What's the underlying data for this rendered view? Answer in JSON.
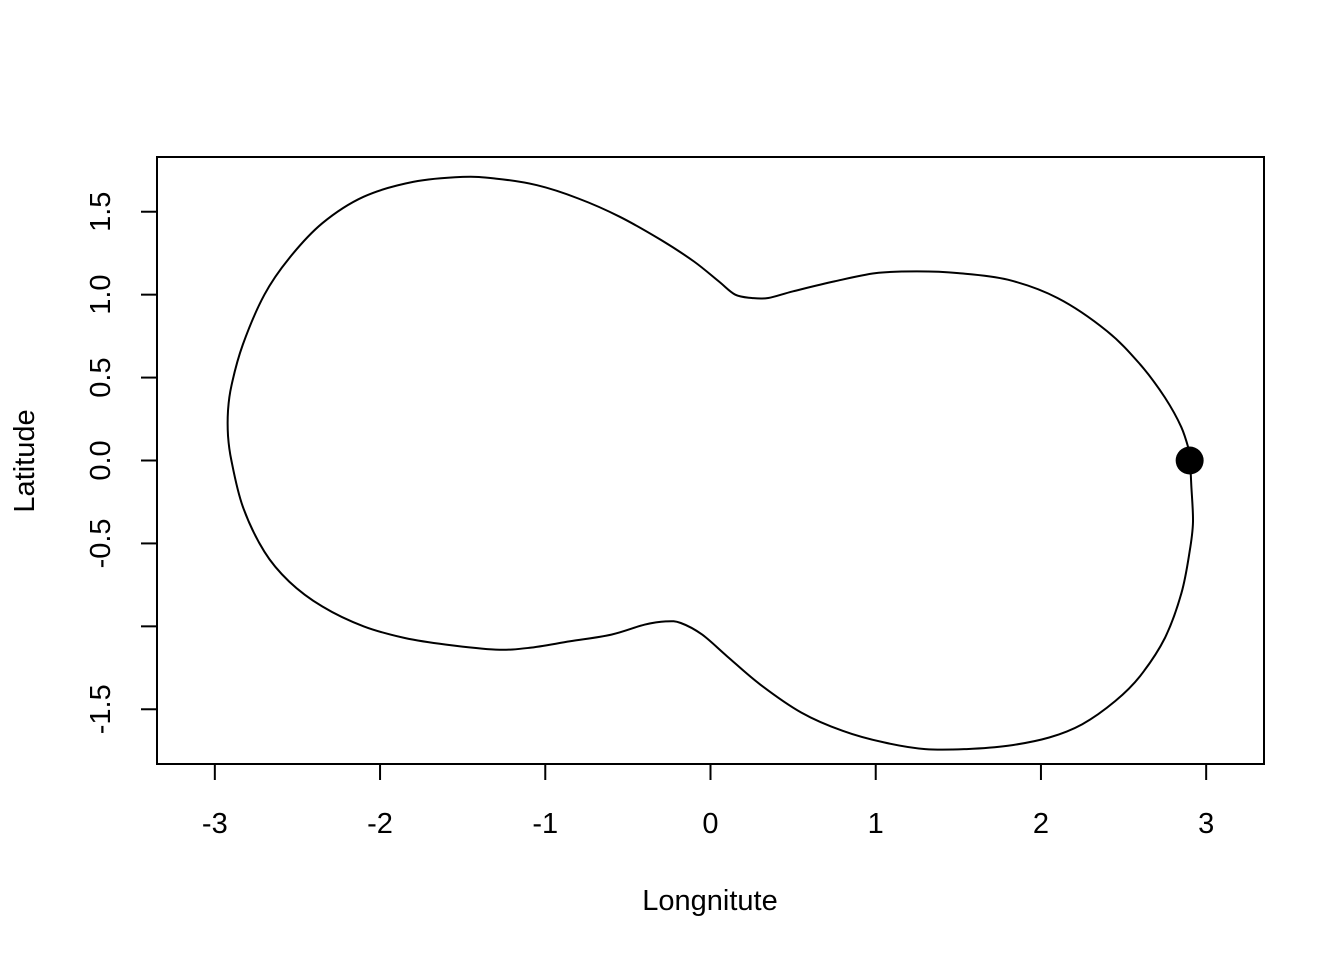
{
  "chart_data": {
    "type": "line",
    "title": "",
    "xlabel": "Longnitute",
    "ylabel": "Latitude",
    "xlim": [
      -3.35,
      3.35
    ],
    "ylim": [
      -1.83,
      1.83
    ],
    "xticks": [
      -3,
      -2,
      -1,
      0,
      1,
      2,
      3
    ],
    "xtick_labels": [
      "-3",
      "-2",
      "-1",
      "0",
      "1",
      "2",
      "3"
    ],
    "yticks": [
      -1.5,
      -1.0,
      -0.5,
      0.0,
      0.5,
      1.0,
      1.5
    ],
    "ytick_labels": [
      "-1.5",
      "",
      "-0.5",
      "0.0",
      "0.5",
      "1.0",
      "1.5"
    ],
    "grid": false,
    "series": [
      {
        "points": [
          [
            2.9,
            0.05
          ],
          [
            2.85,
            0.2
          ],
          [
            2.75,
            0.38
          ],
          [
            2.6,
            0.58
          ],
          [
            2.4,
            0.78
          ],
          [
            2.1,
            0.98
          ],
          [
            1.8,
            1.09
          ],
          [
            1.5,
            1.13
          ],
          [
            1.25,
            1.14
          ],
          [
            1.0,
            1.13
          ],
          [
            0.75,
            1.08
          ],
          [
            0.5,
            1.02
          ],
          [
            0.35,
            0.98
          ],
          [
            0.25,
            0.98
          ],
          [
            0.15,
            1.0
          ],
          [
            0.05,
            1.08
          ],
          [
            -0.1,
            1.2
          ],
          [
            -0.3,
            1.33
          ],
          [
            -0.55,
            1.47
          ],
          [
            -0.8,
            1.58
          ],
          [
            -1.05,
            1.66
          ],
          [
            -1.3,
            1.7
          ],
          [
            -1.5,
            1.71
          ],
          [
            -1.8,
            1.68
          ],
          [
            -2.1,
            1.59
          ],
          [
            -2.35,
            1.43
          ],
          [
            -2.55,
            1.22
          ],
          [
            -2.7,
            1.0
          ],
          [
            -2.83,
            0.7
          ],
          [
            -2.9,
            0.45
          ],
          [
            -2.92,
            0.3
          ],
          [
            -2.92,
            0.15
          ],
          [
            -2.9,
            0.0
          ],
          [
            -2.83,
            -0.28
          ],
          [
            -2.7,
            -0.55
          ],
          [
            -2.55,
            -0.73
          ],
          [
            -2.35,
            -0.88
          ],
          [
            -2.1,
            -1.0
          ],
          [
            -1.85,
            -1.07
          ],
          [
            -1.6,
            -1.11
          ],
          [
            -1.3,
            -1.14
          ],
          [
            -1.1,
            -1.13
          ],
          [
            -0.85,
            -1.09
          ],
          [
            -0.6,
            -1.05
          ],
          [
            -0.4,
            -0.99
          ],
          [
            -0.27,
            -0.97
          ],
          [
            -0.18,
            -0.98
          ],
          [
            -0.05,
            -1.05
          ],
          [
            0.1,
            -1.18
          ],
          [
            0.3,
            -1.35
          ],
          [
            0.55,
            -1.52
          ],
          [
            0.8,
            -1.63
          ],
          [
            1.05,
            -1.7
          ],
          [
            1.3,
            -1.74
          ],
          [
            1.55,
            -1.74
          ],
          [
            1.8,
            -1.72
          ],
          [
            2.05,
            -1.67
          ],
          [
            2.25,
            -1.59
          ],
          [
            2.45,
            -1.45
          ],
          [
            2.6,
            -1.3
          ],
          [
            2.75,
            -1.07
          ],
          [
            2.85,
            -0.8
          ],
          [
            2.9,
            -0.55
          ],
          [
            2.92,
            -0.37
          ],
          [
            2.91,
            -0.15
          ],
          [
            2.9,
            0.05
          ]
        ]
      }
    ],
    "marker": {
      "x": 2.9,
      "y": 0.0
    }
  }
}
